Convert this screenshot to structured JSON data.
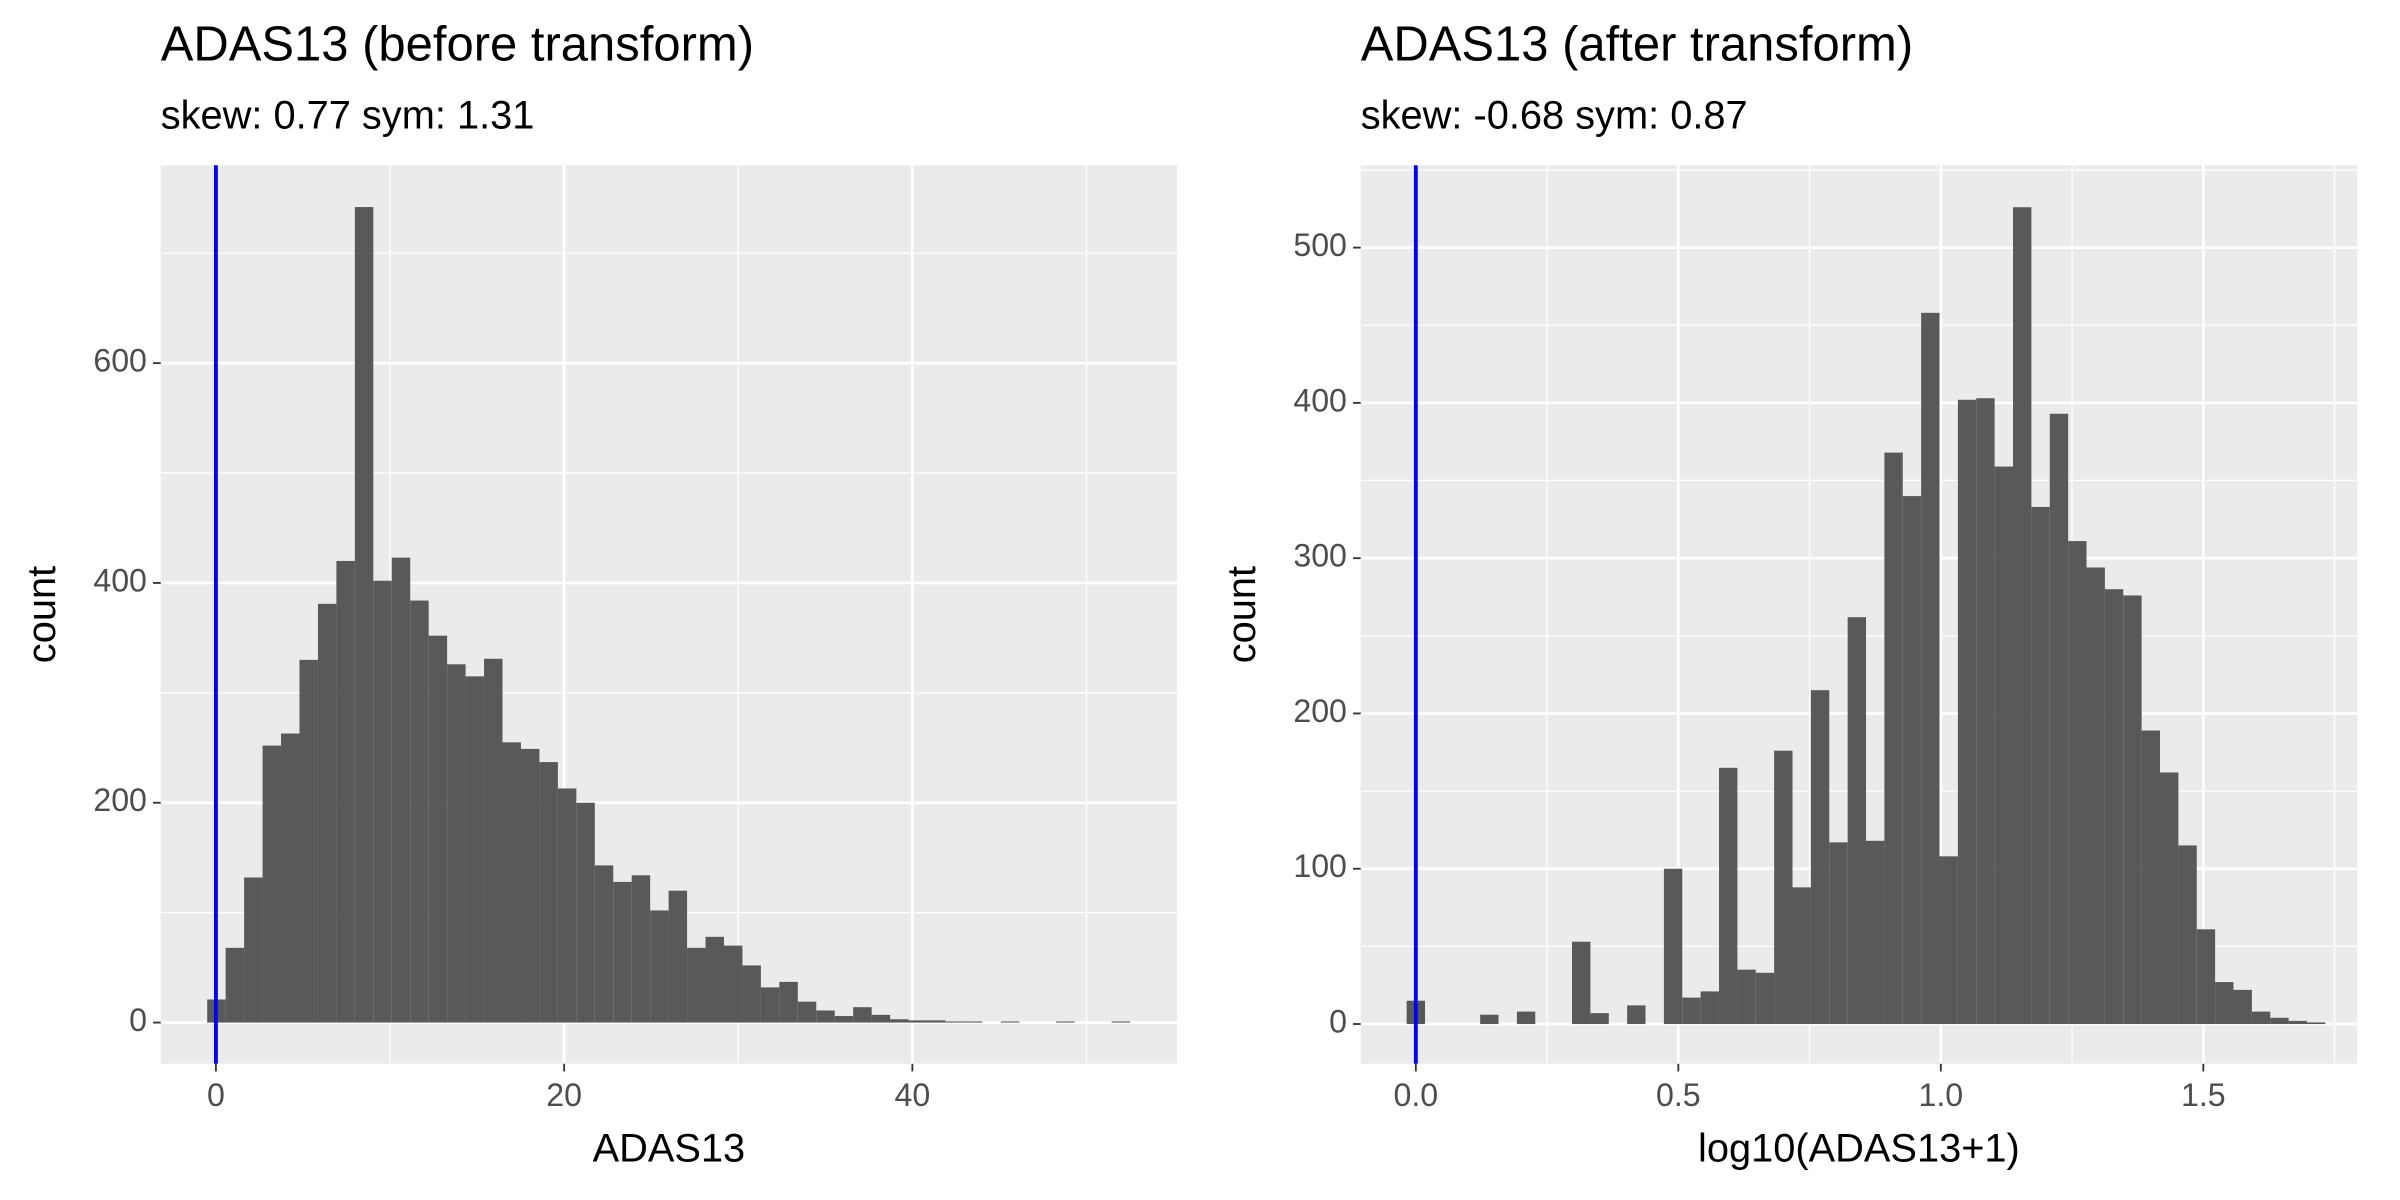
{
  "chart_data": [
    {
      "type": "histogram",
      "title": "ADAS13 (before transform)",
      "subtitle": "skew: 0.77 sym: 1.31",
      "x_label": "ADAS13",
      "y_label": "count",
      "color": "#595959",
      "vline": {
        "value": 0,
        "color": "#0000ff"
      },
      "bins": [
        -0.5,
        0.56,
        1.62,
        2.68,
        3.74,
        4.8,
        5.86,
        6.92,
        7.98,
        9.04,
        10.1,
        11.16,
        12.22,
        13.28,
        14.34,
        15.4,
        16.46,
        17.52,
        18.58,
        19.64,
        20.7,
        21.76,
        22.82,
        23.88,
        24.94,
        26,
        27.06,
        28.12,
        29.18,
        30.24,
        31.3,
        32.36,
        33.42,
        34.48,
        35.54,
        36.6,
        37.66,
        38.72,
        39.78,
        40.84,
        41.9,
        42.96,
        44.02,
        45.08,
        46.14,
        47.2,
        48.26,
        49.32,
        50.38,
        51.44,
        52.5
      ],
      "counts": [
        21,
        68,
        132,
        252,
        263,
        330,
        381,
        420,
        742,
        402,
        423,
        384,
        352,
        326,
        315,
        331,
        255,
        249,
        237,
        213,
        200,
        143,
        128,
        134,
        102,
        120,
        68,
        78,
        70,
        52,
        32,
        37,
        19,
        11,
        6,
        14,
        7,
        3,
        2,
        2,
        1,
        1,
        0,
        1,
        0,
        0,
        1,
        0,
        0,
        1
      ],
      "xlim": [
        -3.17,
        55.2
      ],
      "ylim": [
        -37.5,
        780
      ],
      "xticks": [
        0,
        20,
        40
      ],
      "yticks": [
        0,
        200,
        400,
        600
      ],
      "grid": true
    },
    {
      "type": "histogram",
      "title": "ADAS13 (after transform)",
      "subtitle": "skew: -0.68 sym: 0.87",
      "x_label": "log10(ADAS13+1)",
      "y_label": "count",
      "color": "#595959",
      "vline": {
        "value": 0,
        "color": "#0000ff"
      },
      "bins": [
        -0.0175,
        0.0175,
        0.0525,
        0.0875,
        0.1225,
        0.1575,
        0.1925,
        0.2275,
        0.2625,
        0.2975,
        0.3325,
        0.3675,
        0.4025,
        0.4375,
        0.4725,
        0.5075,
        0.5425,
        0.5775,
        0.6125,
        0.6475,
        0.6825,
        0.7175,
        0.7525,
        0.7875,
        0.8225,
        0.8575,
        0.8925,
        0.9275,
        0.9625,
        0.9975,
        1.0325,
        1.0675,
        1.1025,
        1.1375,
        1.1725,
        1.2075,
        1.2425,
        1.2775,
        1.3125,
        1.3475,
        1.3825,
        1.4175,
        1.4525,
        1.4875,
        1.5225,
        1.5575,
        1.5925,
        1.6275,
        1.6625,
        1.6975,
        1.7325
      ],
      "counts": [
        15,
        0,
        0,
        0,
        6,
        0,
        8,
        0,
        0,
        53,
        7,
        0,
        12,
        0,
        100,
        17,
        21,
        165,
        35,
        33,
        176,
        88,
        215,
        117,
        262,
        118,
        368,
        340,
        458,
        108,
        402,
        403,
        359,
        526,
        333,
        393,
        311,
        294,
        280,
        276,
        189,
        162,
        115,
        61,
        27,
        22,
        8,
        4,
        2,
        1
      ],
      "xlim": [
        -0.105,
        1.793
      ],
      "ylim": [
        -25.6,
        553
      ],
      "xticks": [
        {
          "value": 0,
          "label": "0.0"
        },
        0.5,
        {
          "value": 1,
          "label": "1.0"
        },
        1.5
      ],
      "yticks": [
        0,
        100,
        200,
        300,
        400,
        500
      ],
      "grid": true
    }
  ]
}
